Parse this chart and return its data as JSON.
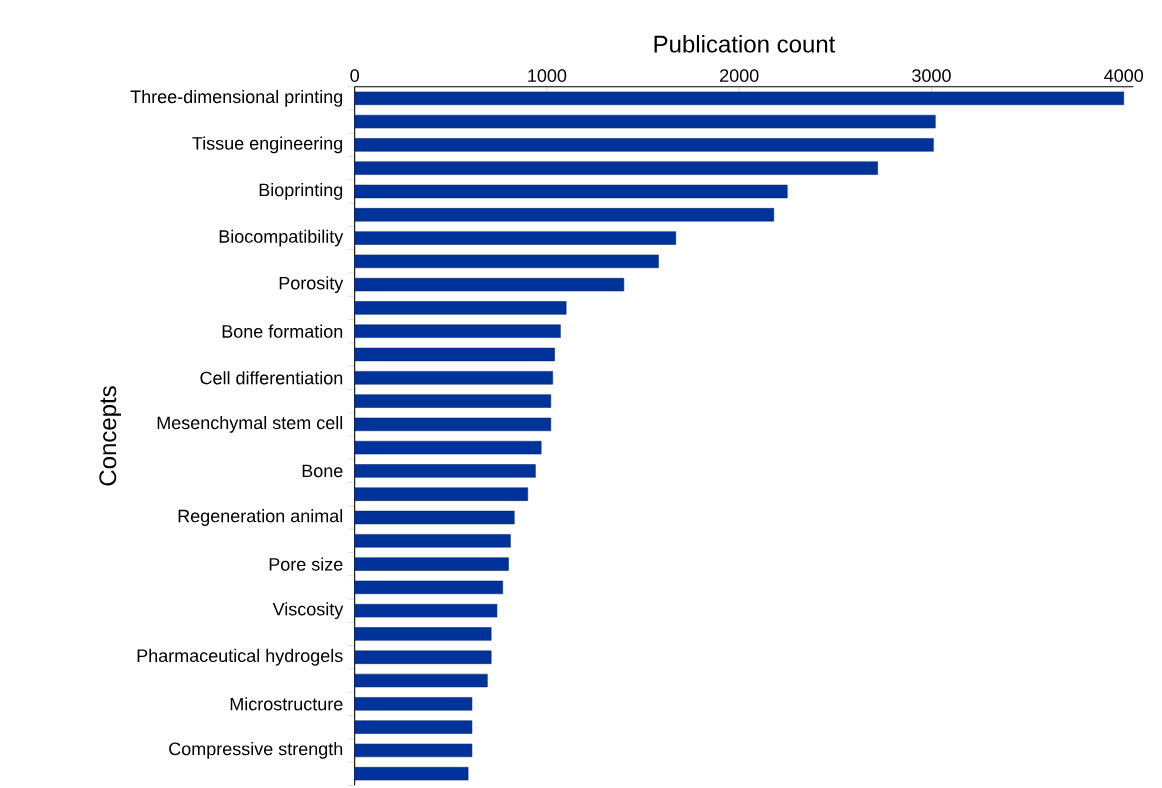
{
  "chart_data": {
    "type": "bar",
    "orientation": "horizontal",
    "xlabel": "Publication count",
    "ylabel": "Concepts",
    "categories": [
      "Three-dimensional printing",
      null,
      "Tissue engineering",
      null,
      "Bioprinting",
      null,
      "Biocompatibility",
      null,
      "Porosity",
      null,
      "Bone formation",
      null,
      "Cell differentiation",
      null,
      "Mesenchymal stem cell",
      null,
      "Bone",
      null,
      "Regeneration animal",
      null,
      "Pore size",
      null,
      "Viscosity",
      null,
      "Pharmaceutical hydrogels",
      null,
      "Microstructure",
      null,
      "Compressive strength",
      null
    ],
    "values": [
      4000,
      3020,
      3010,
      2720,
      2250,
      2180,
      1670,
      1580,
      1400,
      1100,
      1070,
      1040,
      1030,
      1020,
      1020,
      970,
      940,
      900,
      830,
      810,
      800,
      770,
      740,
      710,
      710,
      690,
      610,
      610,
      610,
      590
    ],
    "color": "#003399",
    "xlim": [
      0,
      4050
    ],
    "xticks": [
      0,
      1000,
      2000,
      3000,
      4000
    ]
  }
}
